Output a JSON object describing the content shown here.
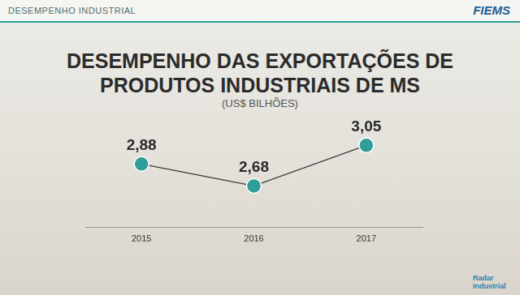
{
  "header": {
    "section": "DESEMPENHO INDUSTRIAL",
    "logo": "FIEMS"
  },
  "footer": {
    "logo": "Radar Industrial"
  },
  "chart_data": {
    "type": "line",
    "title": "DESEMPENHO DAS EXPORTAÇÕES DE PRODUTOS INDUSTRIAIS DE MS",
    "subtitle": "(US$ BILHÕES)",
    "categories": [
      "2015",
      "2016",
      "2017"
    ],
    "values": [
      2.88,
      2.68,
      3.05
    ],
    "value_labels": [
      "2,88",
      "2,68",
      "3,05"
    ],
    "color": "#2e9e98",
    "ylim": [
      2.3,
      3.3
    ],
    "yticks": [
      2.3,
      3.3
    ],
    "grid": false,
    "data_labels": true,
    "tick_labels": "x",
    "marker": "circle",
    "line_style": "solid"
  }
}
